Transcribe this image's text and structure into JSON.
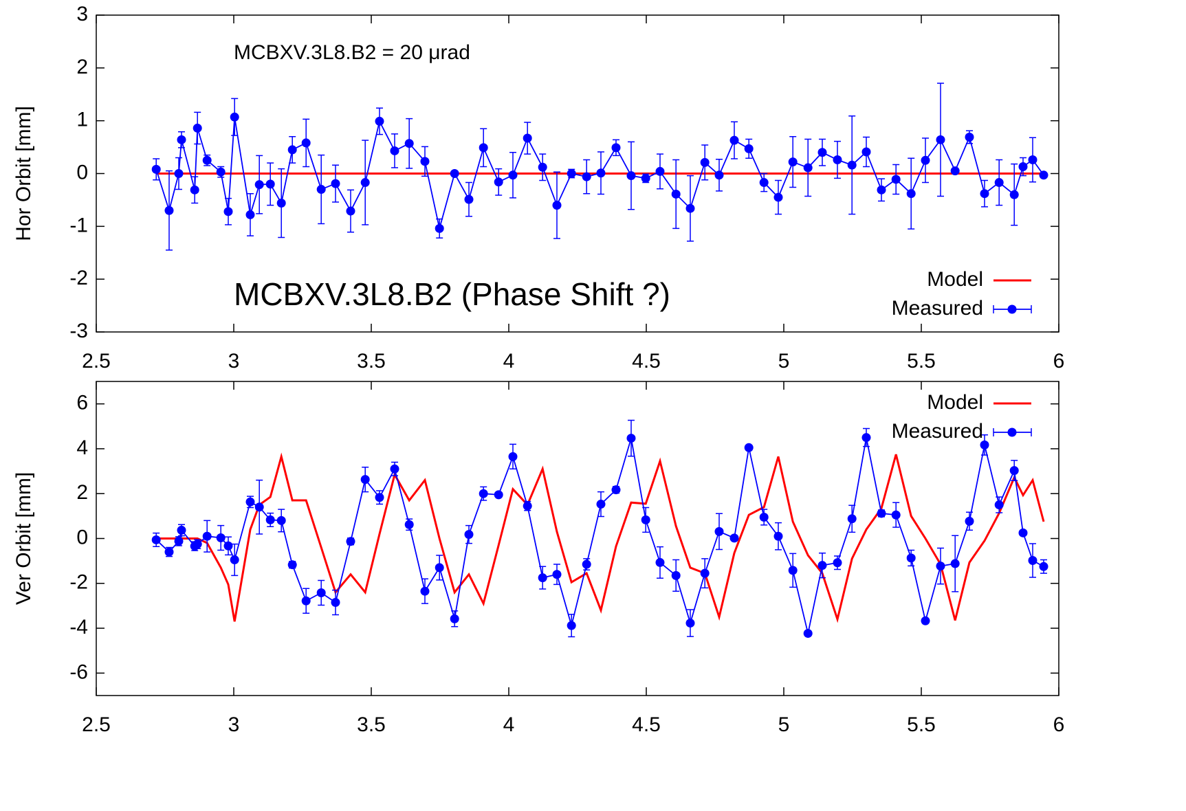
{
  "chart_data": [
    {
      "type": "line",
      "ylabel": "Hor Orbit [mm]",
      "annotations": [
        "MCBXV.3L8.B2 = 20 μrad",
        "MCBXV.3L8.B2 (Phase Shift ?)"
      ],
      "x": [
        2.718,
        2.765,
        2.8,
        2.81,
        2.858,
        2.868,
        2.903,
        2.953,
        2.98,
        3.003,
        3.06,
        3.093,
        3.133,
        3.173,
        3.213,
        3.263,
        3.318,
        3.37,
        3.425,
        3.478,
        3.53,
        3.585,
        3.638,
        3.695,
        3.748,
        3.803,
        3.855,
        3.908,
        3.963,
        4.015,
        4.068,
        4.123,
        4.175,
        4.228,
        4.283,
        4.335,
        4.39,
        4.445,
        4.498,
        4.55,
        4.608,
        4.66,
        4.713,
        4.765,
        4.82,
        4.873,
        4.928,
        4.98,
        5.033,
        5.088,
        5.14,
        5.195,
        5.248,
        5.3,
        5.355,
        5.408,
        5.463,
        5.515,
        5.57,
        5.623,
        5.675,
        5.73,
        5.783,
        5.838,
        5.87,
        5.905,
        5.945
      ],
      "series": [
        {
          "name": "Model",
          "color": "#ff0000",
          "values": [
            0,
            0,
            0,
            0,
            0,
            0,
            0,
            0,
            0,
            0,
            0,
            0,
            0,
            0,
            0,
            0,
            0,
            0,
            0,
            0,
            0,
            0,
            0,
            0,
            0,
            0,
            0,
            0,
            0,
            0,
            0,
            0,
            0,
            0,
            0,
            0,
            0,
            0,
            0,
            0,
            0,
            0,
            0,
            0,
            0,
            0,
            0,
            0,
            0,
            0,
            0,
            0,
            0,
            0,
            0,
            0,
            0,
            0,
            0,
            0,
            0,
            0,
            0,
            0,
            0,
            0,
            0
          ]
        },
        {
          "name": "Measured",
          "color": "#0000ff",
          "values": [
            0.08,
            -0.7,
            0.0,
            0.64,
            -0.31,
            0.86,
            0.25,
            0.03,
            -0.72,
            1.07,
            -0.78,
            -0.21,
            -0.2,
            -0.56,
            0.45,
            0.58,
            -0.3,
            -0.19,
            -0.71,
            -0.17,
            0.99,
            0.43,
            0.57,
            0.23,
            -1.04,
            0.0,
            -0.49,
            0.49,
            -0.16,
            -0.03,
            0.67,
            0.12,
            -0.6,
            0.0,
            -0.06,
            0.01,
            0.49,
            -0.04,
            -0.09,
            0.04,
            -0.39,
            -0.66,
            0.21,
            -0.03,
            0.63,
            0.47,
            -0.17,
            -0.45,
            0.22,
            0.11,
            0.4,
            0.26,
            0.16,
            0.41,
            -0.31,
            -0.11,
            -0.38,
            0.25,
            0.64,
            0.05,
            0.69,
            -0.38,
            -0.17,
            -0.4,
            0.13,
            0.26,
            -0.03
          ],
          "errors": [
            0.2,
            0.75,
            0.3,
            0.15,
            0.25,
            0.3,
            0.1,
            0.1,
            0.25,
            0.35,
            0.4,
            0.55,
            0.4,
            0.65,
            0.25,
            0.45,
            0.65,
            0.35,
            0.4,
            0.8,
            0.25,
            0.32,
            0.47,
            0.28,
            0.18,
            0.02,
            0.32,
            0.36,
            0.25,
            0.43,
            0.3,
            0.25,
            0.63,
            0.08,
            0.32,
            0.4,
            0.15,
            0.64,
            0.08,
            0.33,
            0.65,
            0.62,
            0.33,
            0.3,
            0.35,
            0.18,
            0.17,
            0.32,
            0.48,
            0.54,
            0.25,
            0.35,
            0.93,
            0.28,
            0.21,
            0.28,
            0.67,
            0.42,
            1.07,
            0.04,
            0.12,
            0.25,
            0.43,
            0.58,
            0.17,
            0.42,
            0.02
          ]
        }
      ],
      "xlim": [
        2.5,
        6
      ],
      "xticks": [
        2.5,
        3,
        3.5,
        4,
        4.5,
        5,
        5.5,
        6
      ],
      "ylim": [
        -3,
        3
      ],
      "yticks": [
        -3,
        -2,
        -1,
        0,
        1,
        2,
        3
      ],
      "legend": "lower right"
    },
    {
      "type": "line",
      "ylabel": "Ver Orbit [mm]",
      "x": [
        2.718,
        2.765,
        2.8,
        2.81,
        2.858,
        2.868,
        2.903,
        2.953,
        2.98,
        3.003,
        3.06,
        3.093,
        3.133,
        3.173,
        3.213,
        3.263,
        3.318,
        3.37,
        3.425,
        3.478,
        3.53,
        3.585,
        3.638,
        3.695,
        3.748,
        3.803,
        3.855,
        3.908,
        3.963,
        4.015,
        4.068,
        4.123,
        4.175,
        4.228,
        4.283,
        4.335,
        4.39,
        4.445,
        4.498,
        4.55,
        4.608,
        4.66,
        4.713,
        4.765,
        4.82,
        4.873,
        4.928,
        4.98,
        5.033,
        5.088,
        5.14,
        5.195,
        5.248,
        5.3,
        5.355,
        5.408,
        5.463,
        5.515,
        5.57,
        5.623,
        5.675,
        5.73,
        5.783,
        5.838,
        5.87,
        5.905,
        5.945
      ],
      "series": [
        {
          "name": "Model",
          "color": "#ff0000",
          "values": [
            0,
            0,
            0,
            0,
            0,
            0,
            -0.2,
            -1.3,
            -2.05,
            -3.7,
            0.4,
            1.5,
            1.85,
            3.65,
            1.7,
            1.7,
            -0.4,
            -2.4,
            -1.6,
            -2.4,
            0.2,
            2.85,
            1.7,
            2.6,
            0,
            -2.4,
            -1.6,
            -2.9,
            -0.3,
            2.2,
            1.5,
            3.1,
            0.3,
            -1.95,
            -1.55,
            -3.2,
            -0.35,
            1.6,
            1.55,
            3.45,
            0.55,
            -1.3,
            -1.55,
            -3.5,
            -0.65,
            1.05,
            1.4,
            3.65,
            0.75,
            -0.75,
            -1.55,
            -3.6,
            -0.9,
            0.4,
            1.35,
            3.75,
            1.0,
            0,
            -1.15,
            -3.65,
            -1.07,
            -0.1,
            1.13,
            2.72,
            1.93,
            2.6,
            0.75
          ]
        },
        {
          "name": "Measured",
          "color": "#0000ff",
          "values": [
            -0.06,
            -0.6,
            -0.12,
            0.37,
            -0.34,
            -0.25,
            0.1,
            0.03,
            -0.33,
            -0.95,
            1.63,
            1.4,
            0.83,
            0.8,
            -1.17,
            -2.78,
            -2.42,
            -2.85,
            -0.13,
            2.63,
            1.83,
            3.1,
            0.62,
            -2.35,
            -1.3,
            -3.58,
            0.18,
            2.0,
            1.95,
            3.65,
            1.45,
            -1.75,
            -1.6,
            -3.88,
            -1.15,
            1.53,
            2.17,
            4.47,
            0.83,
            -1.07,
            -1.65,
            -3.77,
            -1.55,
            0.31,
            0.02,
            4.05,
            0.95,
            0.1,
            -1.42,
            -4.23,
            -1.2,
            -1.08,
            0.88,
            4.5,
            1.12,
            1.05,
            -0.87,
            -3.67,
            -1.23,
            -1.12,
            0.77,
            4.17,
            1.5,
            3.03,
            0.25,
            -0.98,
            -1.25
          ],
          "errors": [
            0.3,
            0.2,
            0.2,
            0.25,
            0.2,
            0.2,
            0.7,
            0.55,
            0.4,
            0.7,
            0.25,
            1.2,
            0.3,
            0.5,
            0.15,
            0.55,
            0.55,
            0.55,
            0.15,
            0.55,
            0.3,
            0.3,
            0.25,
            0.55,
            0.55,
            0.35,
            0.4,
            0.3,
            0.1,
            0.55,
            0.2,
            0.5,
            0.45,
            0.5,
            0.25,
            0.55,
            0.15,
            0.8,
            0.55,
            0.7,
            0.7,
            0.6,
            0.65,
            0.8,
            0.1,
            0.1,
            0.35,
            0.6,
            0.75,
            0.1,
            0.55,
            0.3,
            0.6,
            0.4,
            0.15,
            0.55,
            0.35,
            0.1,
            0.8,
            1.25,
            0.4,
            0.45,
            0.35,
            0.45,
            0.1,
            0.75,
            0.3
          ]
        }
      ],
      "xlim": [
        2.5,
        6
      ],
      "xticks": [
        2.5,
        3,
        3.5,
        4,
        4.5,
        5,
        5.5,
        6
      ],
      "ylim": [
        -7,
        7
      ],
      "yticks": [
        -6,
        -4,
        -2,
        0,
        2,
        4,
        6
      ],
      "legend": "upper right"
    }
  ]
}
